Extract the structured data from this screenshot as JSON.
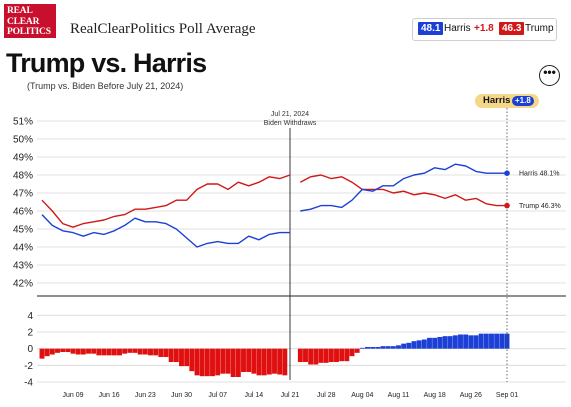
{
  "header": {
    "logo_lines": [
      "REAL",
      "CLEAR",
      "POLITICS"
    ],
    "app_title": "RealClearPolitics Poll Average",
    "badges": [
      {
        "value": "48.1",
        "name": "Harris",
        "change": "+1.8",
        "color": "#1c3fd6"
      },
      {
        "value": "46.3",
        "name": "Trump",
        "change": "",
        "color": "#d01818"
      }
    ]
  },
  "headline": "Trump vs. Harris",
  "subhead": "(Trump vs. Biden Before July 21, 2024)",
  "more_button": "•••",
  "lead_tag": {
    "name": "Harris",
    "value": "+1.8"
  },
  "chart_data": {
    "type": "line",
    "x_ticks": [
      "Jun 09",
      "Jun 16",
      "Jun 23",
      "Jun 30",
      "Jul 07",
      "Jul 14",
      "Jul 21",
      "Jul 28",
      "Aug 04",
      "Aug 11",
      "Aug 18",
      "Aug 26",
      "Sep 01"
    ],
    "x_range": [
      "2024-06-03",
      "2024-09-01"
    ],
    "y_ticks": [
      "51%",
      "50%",
      "49%",
      "48%",
      "47%",
      "46%",
      "45%",
      "44%",
      "43%",
      "42%"
    ],
    "ylim": [
      42,
      51
    ],
    "event": {
      "date": "2024-07-21",
      "label_lines": [
        "Jul 21, 2024",
        "Biden Withdraws"
      ]
    },
    "series": [
      {
        "name": "Trump",
        "color": "#d01818",
        "end_label": "Trump 46.3%",
        "segments": [
          [
            [
              "2024-06-03",
              46.6
            ],
            [
              "2024-06-05",
              46.0
            ],
            [
              "2024-06-07",
              45.3
            ],
            [
              "2024-06-09",
              45.1
            ],
            [
              "2024-06-11",
              45.3
            ],
            [
              "2024-06-13",
              45.4
            ],
            [
              "2024-06-15",
              45.5
            ],
            [
              "2024-06-17",
              45.7
            ],
            [
              "2024-06-19",
              45.8
            ],
            [
              "2024-06-21",
              46.1
            ],
            [
              "2024-06-23",
              46.1
            ],
            [
              "2024-06-25",
              46.2
            ],
            [
              "2024-06-27",
              46.3
            ],
            [
              "2024-06-29",
              46.6
            ],
            [
              "2024-07-01",
              46.6
            ],
            [
              "2024-07-03",
              47.2
            ],
            [
              "2024-07-05",
              47.5
            ],
            [
              "2024-07-07",
              47.5
            ],
            [
              "2024-07-09",
              47.2
            ],
            [
              "2024-07-11",
              47.6
            ],
            [
              "2024-07-13",
              47.4
            ],
            [
              "2024-07-15",
              47.6
            ],
            [
              "2024-07-17",
              47.9
            ],
            [
              "2024-07-19",
              47.8
            ],
            [
              "2024-07-21",
              48.0
            ]
          ],
          [
            [
              "2024-07-23",
              47.6
            ],
            [
              "2024-07-25",
              47.9
            ],
            [
              "2024-07-27",
              48.0
            ],
            [
              "2024-07-29",
              47.8
            ],
            [
              "2024-07-31",
              47.9
            ],
            [
              "2024-08-02",
              47.6
            ],
            [
              "2024-08-04",
              47.2
            ],
            [
              "2024-08-06",
              47.2
            ],
            [
              "2024-08-08",
              47.2
            ],
            [
              "2024-08-10",
              47.0
            ],
            [
              "2024-08-12",
              47.1
            ],
            [
              "2024-08-14",
              46.9
            ],
            [
              "2024-08-16",
              47.0
            ],
            [
              "2024-08-18",
              46.9
            ],
            [
              "2024-08-20",
              46.7
            ],
            [
              "2024-08-22",
              46.9
            ],
            [
              "2024-08-24",
              46.6
            ],
            [
              "2024-08-26",
              46.7
            ],
            [
              "2024-08-28",
              46.4
            ],
            [
              "2024-08-30",
              46.3
            ],
            [
              "2024-09-01",
              46.3
            ]
          ]
        ]
      },
      {
        "name": "Harris",
        "color": "#1c3fd6",
        "end_label": "Harris 48.1%",
        "segments": [
          [
            [
              "2024-06-03",
              45.8
            ],
            [
              "2024-06-05",
              45.2
            ],
            [
              "2024-06-07",
              44.9
            ],
            [
              "2024-06-09",
              44.8
            ],
            [
              "2024-06-11",
              44.6
            ],
            [
              "2024-06-13",
              44.8
            ],
            [
              "2024-06-15",
              44.7
            ],
            [
              "2024-06-17",
              44.9
            ],
            [
              "2024-06-19",
              45.2
            ],
            [
              "2024-06-21",
              45.6
            ],
            [
              "2024-06-23",
              45.4
            ],
            [
              "2024-06-25",
              45.4
            ],
            [
              "2024-06-27",
              45.3
            ],
            [
              "2024-06-29",
              45.0
            ],
            [
              "2024-07-01",
              44.5
            ],
            [
              "2024-07-03",
              44.0
            ],
            [
              "2024-07-05",
              44.2
            ],
            [
              "2024-07-07",
              44.3
            ],
            [
              "2024-07-09",
              44.2
            ],
            [
              "2024-07-11",
              44.2
            ],
            [
              "2024-07-13",
              44.6
            ],
            [
              "2024-07-15",
              44.4
            ],
            [
              "2024-07-17",
              44.7
            ],
            [
              "2024-07-19",
              44.8
            ],
            [
              "2024-07-21",
              44.8
            ]
          ],
          [
            [
              "2024-07-23",
              46.0
            ],
            [
              "2024-07-25",
              46.1
            ],
            [
              "2024-07-27",
              46.3
            ],
            [
              "2024-07-29",
              46.3
            ],
            [
              "2024-07-31",
              46.2
            ],
            [
              "2024-08-02",
              46.6
            ],
            [
              "2024-08-04",
              47.2
            ],
            [
              "2024-08-06",
              47.1
            ],
            [
              "2024-08-08",
              47.4
            ],
            [
              "2024-08-10",
              47.4
            ],
            [
              "2024-08-12",
              47.8
            ],
            [
              "2024-08-14",
              48.0
            ],
            [
              "2024-08-16",
              48.1
            ],
            [
              "2024-08-18",
              48.4
            ],
            [
              "2024-08-20",
              48.3
            ],
            [
              "2024-08-22",
              48.6
            ],
            [
              "2024-08-24",
              48.5
            ],
            [
              "2024-08-26",
              48.2
            ],
            [
              "2024-08-28",
              48.1
            ],
            [
              "2024-08-30",
              48.1
            ],
            [
              "2024-09-01",
              48.1
            ]
          ]
        ]
      }
    ],
    "spread": {
      "y_ticks": [
        "4",
        "2",
        "0",
        "-2",
        "-4"
      ],
      "ylim": [
        -4,
        5
      ],
      "positive_color": "#1c3fd6",
      "negative_color": "#e01010",
      "bars": [
        [
          "2024-06-03",
          -1.2
        ],
        [
          "2024-06-04",
          -0.9
        ],
        [
          "2024-06-05",
          -0.7
        ],
        [
          "2024-06-06",
          -0.5
        ],
        [
          "2024-06-07",
          -0.4
        ],
        [
          "2024-06-08",
          -0.4
        ],
        [
          "2024-06-09",
          -0.6
        ],
        [
          "2024-06-10",
          -0.7
        ],
        [
          "2024-06-11",
          -0.7
        ],
        [
          "2024-06-12",
          -0.6
        ],
        [
          "2024-06-13",
          -0.6
        ],
        [
          "2024-06-14",
          -0.8
        ],
        [
          "2024-06-15",
          -0.8
        ],
        [
          "2024-06-16",
          -0.8
        ],
        [
          "2024-06-17",
          -0.8
        ],
        [
          "2024-06-18",
          -0.8
        ],
        [
          "2024-06-19",
          -0.6
        ],
        [
          "2024-06-20",
          -0.5
        ],
        [
          "2024-06-21",
          -0.5
        ],
        [
          "2024-06-22",
          -0.7
        ],
        [
          "2024-06-23",
          -0.7
        ],
        [
          "2024-06-24",
          -0.8
        ],
        [
          "2024-06-25",
          -0.8
        ],
        [
          "2024-06-26",
          -1.0
        ],
        [
          "2024-06-27",
          -1.0
        ],
        [
          "2024-06-28",
          -1.6
        ],
        [
          "2024-06-29",
          -1.6
        ],
        [
          "2024-06-30",
          -2.1
        ],
        [
          "2024-07-01",
          -2.1
        ],
        [
          "2024-07-02",
          -2.7
        ],
        [
          "2024-07-03",
          -3.2
        ],
        [
          "2024-07-04",
          -3.3
        ],
        [
          "2024-07-05",
          -3.3
        ],
        [
          "2024-07-06",
          -3.3
        ],
        [
          "2024-07-07",
          -3.2
        ],
        [
          "2024-07-08",
          -3.0
        ],
        [
          "2024-07-09",
          -3.0
        ],
        [
          "2024-07-10",
          -3.4
        ],
        [
          "2024-07-11",
          -3.4
        ],
        [
          "2024-07-12",
          -2.8
        ],
        [
          "2024-07-13",
          -2.8
        ],
        [
          "2024-07-14",
          -3.0
        ],
        [
          "2024-07-15",
          -3.2
        ],
        [
          "2024-07-16",
          -3.2
        ],
        [
          "2024-07-17",
          -3.1
        ],
        [
          "2024-07-18",
          -3.0
        ],
        [
          "2024-07-19",
          -3.1
        ],
        [
          "2024-07-20",
          -3.2
        ],
        [
          "2024-07-23",
          -1.6
        ],
        [
          "2024-07-24",
          -1.6
        ],
        [
          "2024-07-25",
          -1.9
        ],
        [
          "2024-07-26",
          -1.9
        ],
        [
          "2024-07-27",
          -1.7
        ],
        [
          "2024-07-28",
          -1.7
        ],
        [
          "2024-07-29",
          -1.6
        ],
        [
          "2024-07-30",
          -1.6
        ],
        [
          "2024-07-31",
          -1.5
        ],
        [
          "2024-08-01",
          -1.5
        ],
        [
          "2024-08-02",
          -0.9
        ],
        [
          "2024-08-03",
          -0.5
        ],
        [
          "2024-08-04",
          0.1
        ],
        [
          "2024-08-05",
          0.2
        ],
        [
          "2024-08-06",
          0.2
        ],
        [
          "2024-08-07",
          0.2
        ],
        [
          "2024-08-08",
          0.3
        ],
        [
          "2024-08-09",
          0.3
        ],
        [
          "2024-08-10",
          0.3
        ],
        [
          "2024-08-11",
          0.4
        ],
        [
          "2024-08-12",
          0.6
        ],
        [
          "2024-08-13",
          0.7
        ],
        [
          "2024-08-14",
          0.9
        ],
        [
          "2024-08-15",
          1.0
        ],
        [
          "2024-08-16",
          1.1
        ],
        [
          "2024-08-17",
          1.3
        ],
        [
          "2024-08-18",
          1.3
        ],
        [
          "2024-08-19",
          1.4
        ],
        [
          "2024-08-20",
          1.5
        ],
        [
          "2024-08-21",
          1.5
        ],
        [
          "2024-08-22",
          1.6
        ],
        [
          "2024-08-23",
          1.7
        ],
        [
          "2024-08-24",
          1.7
        ],
        [
          "2024-08-25",
          1.6
        ],
        [
          "2024-08-26",
          1.6
        ],
        [
          "2024-08-27",
          1.8
        ],
        [
          "2024-08-28",
          1.8
        ],
        [
          "2024-08-29",
          1.8
        ],
        [
          "2024-08-30",
          1.8
        ],
        [
          "2024-08-31",
          1.8
        ],
        [
          "2024-09-01",
          1.8
        ]
      ]
    },
    "grid": true
  }
}
